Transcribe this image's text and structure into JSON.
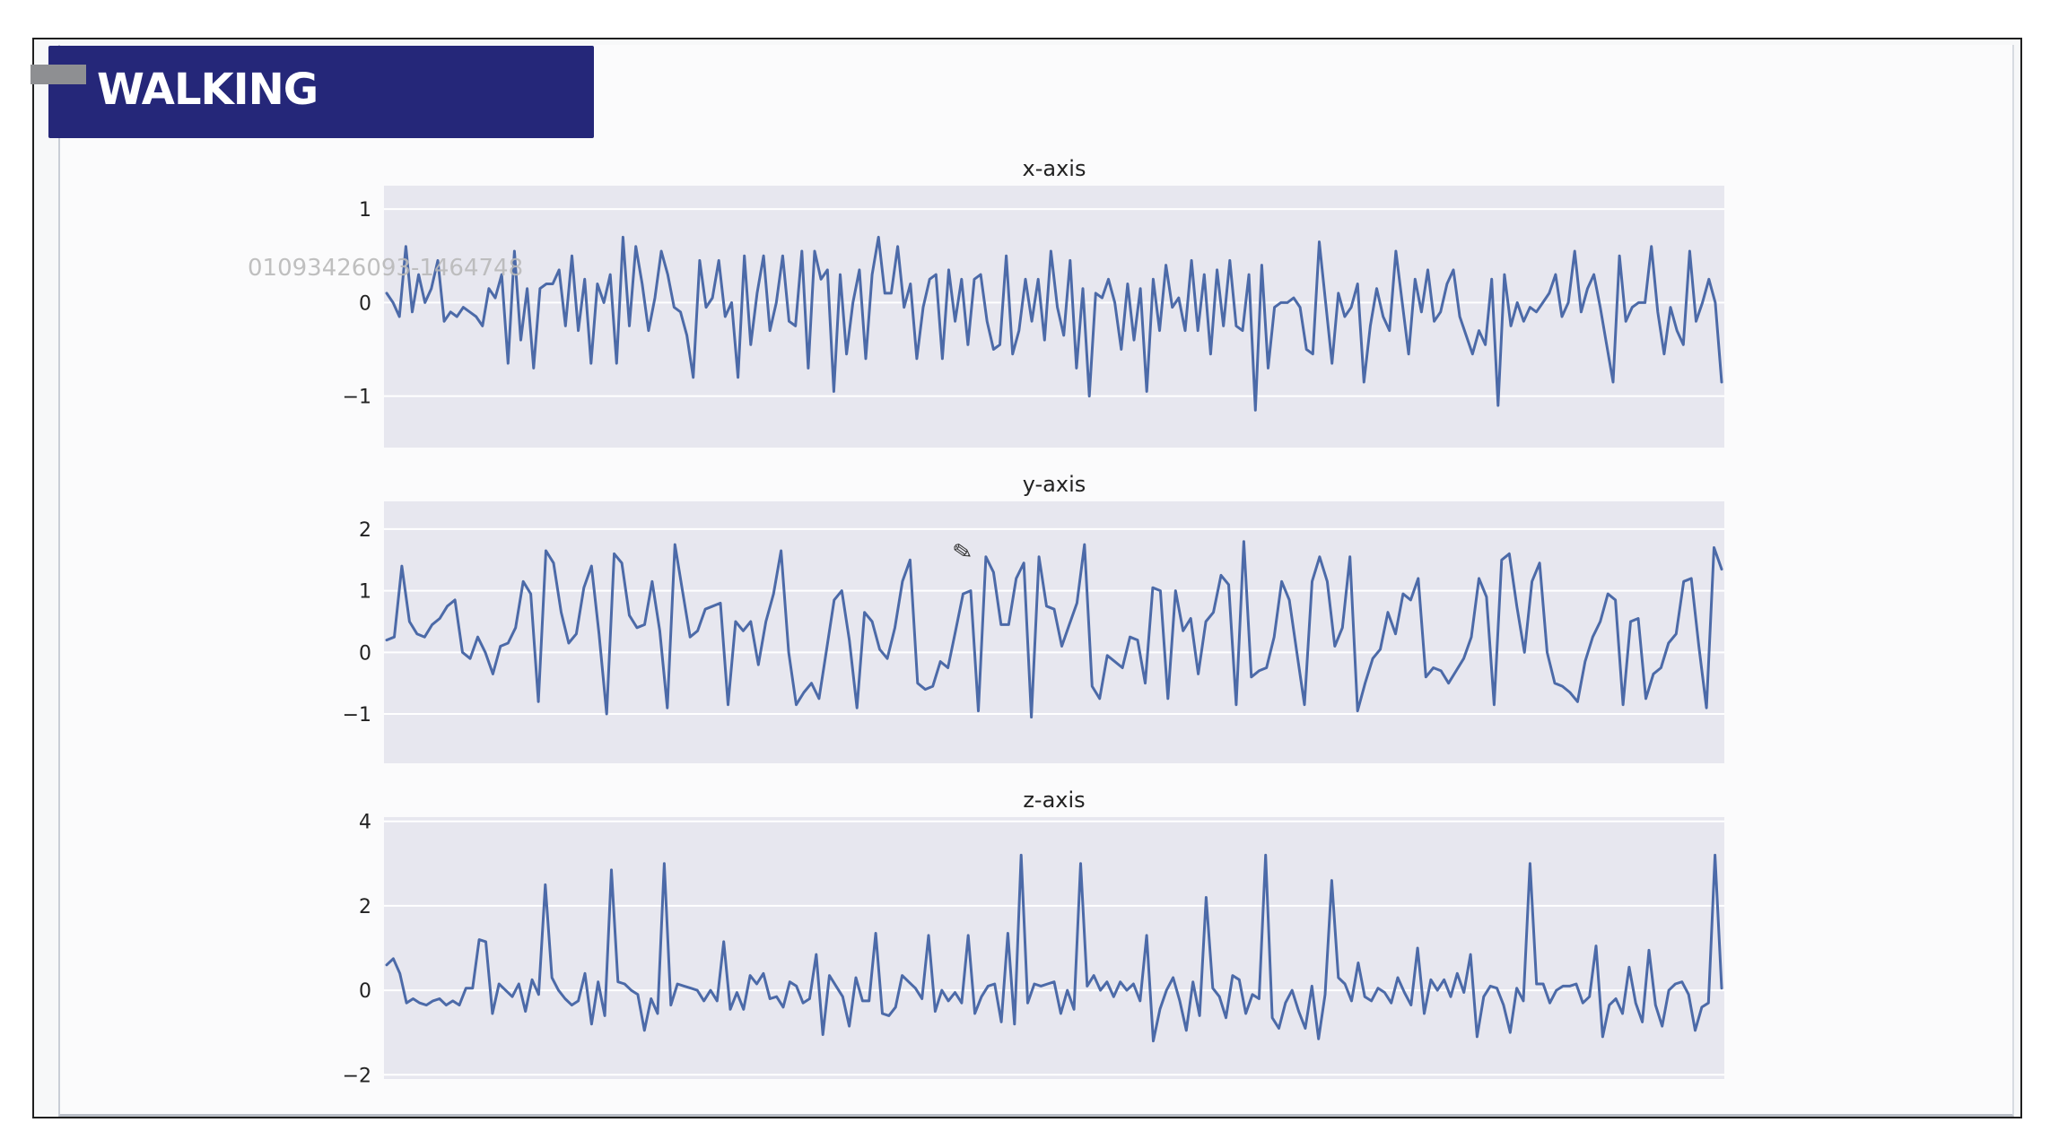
{
  "banner": {
    "title": "WALKING"
  },
  "watermark": {
    "text": "01093426093-1464748"
  },
  "icons": {
    "cursor": "pencil-cursor-icon",
    "tab": "tab-marker-icon"
  },
  "colors": {
    "banner": "#252779",
    "line": "#4c6aa8",
    "plot_bg": "#e7e7ef",
    "grid": "#ffffff"
  },
  "chart_data": [
    {
      "type": "line",
      "title": "x-axis",
      "ylim": [
        -1.55,
        1.25
      ],
      "yticks": [
        1,
        0,
        -1
      ],
      "ytick_labels": [
        "1",
        "0",
        "−1"
      ],
      "grid": "horizontal",
      "values": [
        0.1,
        0.0,
        -0.15,
        0.6,
        -0.1,
        0.3,
        0.0,
        0.15,
        0.45,
        -0.2,
        -0.1,
        -0.15,
        -0.05,
        -0.1,
        -0.15,
        -0.25,
        0.15,
        0.05,
        0.3,
        -0.65,
        0.55,
        -0.4,
        0.15,
        -0.7,
        0.15,
        0.2,
        0.2,
        0.35,
        -0.25,
        0.5,
        -0.3,
        0.25,
        -0.65,
        0.2,
        0.0,
        0.3,
        -0.65,
        0.7,
        -0.25,
        0.6,
        0.2,
        -0.3,
        0.05,
        0.55,
        0.3,
        -0.05,
        -0.1,
        -0.35,
        -0.8,
        0.45,
        -0.05,
        0.05,
        0.45,
        -0.15,
        0.0,
        -0.8,
        0.5,
        -0.45,
        0.1,
        0.5,
        -0.3,
        0.0,
        0.5,
        -0.2,
        -0.25,
        0.55,
        -0.7,
        0.55,
        0.25,
        0.35,
        -0.95,
        0.3,
        -0.55,
        0.0,
        0.35,
        -0.6,
        0.3,
        0.7,
        0.1,
        0.1,
        0.6,
        -0.05,
        0.2,
        -0.6,
        -0.05,
        0.25,
        0.3,
        -0.6,
        0.35,
        -0.2,
        0.25,
        -0.45,
        0.25,
        0.3,
        -0.2,
        -0.5,
        -0.45,
        0.5,
        -0.55,
        -0.3,
        0.25,
        -0.2,
        0.25,
        -0.4,
        0.55,
        -0.05,
        -0.35,
        0.45,
        -0.7,
        0.15,
        -1.0,
        0.1,
        0.05,
        0.25,
        0.0,
        -0.5,
        0.2,
        -0.4,
        0.15,
        -0.95,
        0.25,
        -0.3,
        0.4,
        -0.05,
        0.05,
        -0.3,
        0.45,
        -0.3,
        0.3,
        -0.55,
        0.35,
        -0.25,
        0.45,
        -0.25,
        -0.3,
        0.3,
        -1.15,
        0.4,
        -0.7,
        -0.05,
        0.0,
        0.0,
        0.05,
        -0.05,
        -0.5,
        -0.55,
        0.65,
        0.0,
        -0.65,
        0.1,
        -0.15,
        -0.05,
        0.2,
        -0.85,
        -0.25,
        0.15,
        -0.15,
        -0.3,
        0.55,
        0.0,
        -0.55,
        0.25,
        -0.1,
        0.35,
        -0.2,
        -0.1,
        0.2,
        0.35,
        -0.15,
        -0.35,
        -0.55,
        -0.3,
        -0.45,
        0.25,
        -1.1,
        0.3,
        -0.25,
        0.0,
        -0.2,
        -0.05,
        -0.1,
        0.0,
        0.1,
        0.3,
        -0.15,
        0.0,
        0.55,
        -0.1,
        0.15,
        0.3,
        -0.05,
        -0.45,
        -0.85,
        0.5,
        -0.2,
        -0.05,
        0.0,
        0.0,
        0.6,
        -0.1,
        -0.55,
        -0.05,
        -0.3,
        -0.45,
        0.55,
        -0.2,
        0.0,
        0.25,
        0.0,
        -0.85
      ]
    },
    {
      "type": "line",
      "title": "y-axis",
      "ylim": [
        -1.8,
        2.45
      ],
      "yticks": [
        2,
        1,
        0,
        -1
      ],
      "ytick_labels": [
        "2",
        "1",
        "0",
        "−1"
      ],
      "grid": "horizontal",
      "values": [
        0.2,
        0.25,
        1.4,
        0.5,
        0.3,
        0.25,
        0.45,
        0.55,
        0.75,
        0.85,
        0.0,
        -0.1,
        0.25,
        0.0,
        -0.35,
        0.1,
        0.15,
        0.4,
        1.15,
        0.95,
        -0.8,
        1.65,
        1.45,
        0.65,
        0.15,
        0.3,
        1.05,
        1.4,
        0.3,
        -1.0,
        1.6,
        1.45,
        0.6,
        0.4,
        0.45,
        1.15,
        0.35,
        -0.9,
        1.75,
        1.0,
        0.25,
        0.35,
        0.7,
        0.75,
        0.8,
        -0.85,
        0.5,
        0.35,
        0.5,
        -0.2,
        0.5,
        0.95,
        1.65,
        0.0,
        -0.85,
        -0.65,
        -0.5,
        -0.75,
        0.05,
        0.85,
        1.0,
        0.2,
        -0.9,
        0.65,
        0.5,
        0.05,
        -0.1,
        0.4,
        1.15,
        1.5,
        -0.5,
        -0.6,
        -0.55,
        -0.15,
        -0.25,
        0.35,
        0.95,
        1.0,
        -0.95,
        1.55,
        1.3,
        0.45,
        0.45,
        1.2,
        1.45,
        -1.05,
        1.55,
        0.75,
        0.7,
        0.1,
        0.45,
        0.8,
        1.75,
        -0.55,
        -0.75,
        -0.05,
        -0.15,
        -0.25,
        0.25,
        0.2,
        -0.5,
        1.05,
        1.0,
        -0.75,
        1.0,
        0.35,
        0.55,
        -0.35,
        0.5,
        0.65,
        1.25,
        1.1,
        -0.85,
        1.8,
        -0.4,
        -0.3,
        -0.25,
        0.25,
        1.15,
        0.85,
        0.0,
        -0.85,
        1.15,
        1.55,
        1.15,
        0.1,
        0.4,
        1.55,
        -0.95,
        -0.5,
        -0.1,
        0.05,
        0.65,
        0.3,
        0.95,
        0.85,
        1.2,
        -0.4,
        -0.25,
        -0.3,
        -0.5,
        -0.3,
        -0.1,
        0.25,
        1.2,
        0.9,
        -0.85,
        1.5,
        1.6,
        0.75,
        0.0,
        1.15,
        1.45,
        0.0,
        -0.5,
        -0.55,
        -0.65,
        -0.8,
        -0.15,
        0.25,
        0.5,
        0.95,
        0.85,
        -0.85,
        0.5,
        0.55,
        -0.75,
        -0.35,
        -0.25,
        0.15,
        0.3,
        1.15,
        1.2,
        0.1,
        -0.9,
        1.7,
        1.35
      ]
    },
    {
      "type": "line",
      "title": "z-axis",
      "ylim": [
        -2.1,
        4.1
      ],
      "yticks": [
        4,
        2,
        0,
        -2
      ],
      "ytick_labels": [
        "4",
        "2",
        "0",
        "−2"
      ],
      "grid": "horizontal",
      "values": [
        0.6,
        0.75,
        0.4,
        -0.3,
        -0.2,
        -0.3,
        -0.35,
        -0.25,
        -0.2,
        -0.35,
        -0.25,
        -0.35,
        0.05,
        0.05,
        1.2,
        1.15,
        -0.55,
        0.15,
        0.0,
        -0.15,
        0.15,
        -0.5,
        0.25,
        -0.1,
        2.5,
        0.3,
        0.0,
        -0.2,
        -0.35,
        -0.25,
        0.4,
        -0.8,
        0.2,
        -0.6,
        2.85,
        0.2,
        0.15,
        0.0,
        -0.1,
        -0.95,
        -0.2,
        -0.55,
        3.0,
        -0.35,
        0.15,
        0.1,
        0.05,
        0.0,
        -0.25,
        0.0,
        -0.25,
        1.15,
        -0.45,
        -0.05,
        -0.45,
        0.35,
        0.15,
        0.4,
        -0.2,
        -0.15,
        -0.4,
        0.2,
        0.1,
        -0.3,
        -0.2,
        0.85,
        -1.05,
        0.35,
        0.1,
        -0.15,
        -0.85,
        0.3,
        -0.25,
        -0.25,
        1.35,
        -0.55,
        -0.6,
        -0.4,
        0.35,
        0.2,
        0.05,
        -0.2,
        1.3,
        -0.5,
        0.0,
        -0.25,
        -0.05,
        -0.3,
        1.3,
        -0.55,
        -0.15,
        0.1,
        0.15,
        -0.75,
        1.35,
        -0.8,
        3.2,
        -0.3,
        0.15,
        0.1,
        0.15,
        0.2,
        -0.55,
        0.0,
        -0.45,
        3.0,
        0.1,
        0.35,
        0.0,
        0.2,
        -0.15,
        0.2,
        0.0,
        0.15,
        -0.25,
        1.3,
        -1.2,
        -0.45,
        0.0,
        0.3,
        -0.25,
        -0.95,
        0.2,
        -0.6,
        2.2,
        0.05,
        -0.15,
        -0.65,
        0.35,
        0.25,
        -0.55,
        -0.1,
        -0.2,
        3.2,
        -0.65,
        -0.9,
        -0.3,
        0.0,
        -0.5,
        -0.9,
        0.1,
        -1.15,
        -0.1,
        2.6,
        0.3,
        0.15,
        -0.25,
        0.65,
        -0.15,
        -0.25,
        0.05,
        -0.05,
        -0.3,
        0.3,
        -0.05,
        -0.35,
        1.0,
        -0.55,
        0.25,
        0.0,
        0.25,
        -0.15,
        0.4,
        -0.05,
        0.85,
        -1.1,
        -0.15,
        0.1,
        0.05,
        -0.35,
        -1.0,
        0.05,
        -0.25,
        3.0,
        0.15,
        0.15,
        -0.3,
        0.0,
        0.1,
        0.1,
        0.15,
        -0.3,
        -0.15,
        1.05,
        -1.1,
        -0.35,
        -0.2,
        -0.55,
        0.55,
        -0.3,
        -0.75,
        0.95,
        -0.35,
        -0.85,
        0.0,
        0.15,
        0.2,
        -0.1,
        -0.95,
        -0.4,
        -0.3,
        3.2,
        0.05
      ]
    }
  ]
}
